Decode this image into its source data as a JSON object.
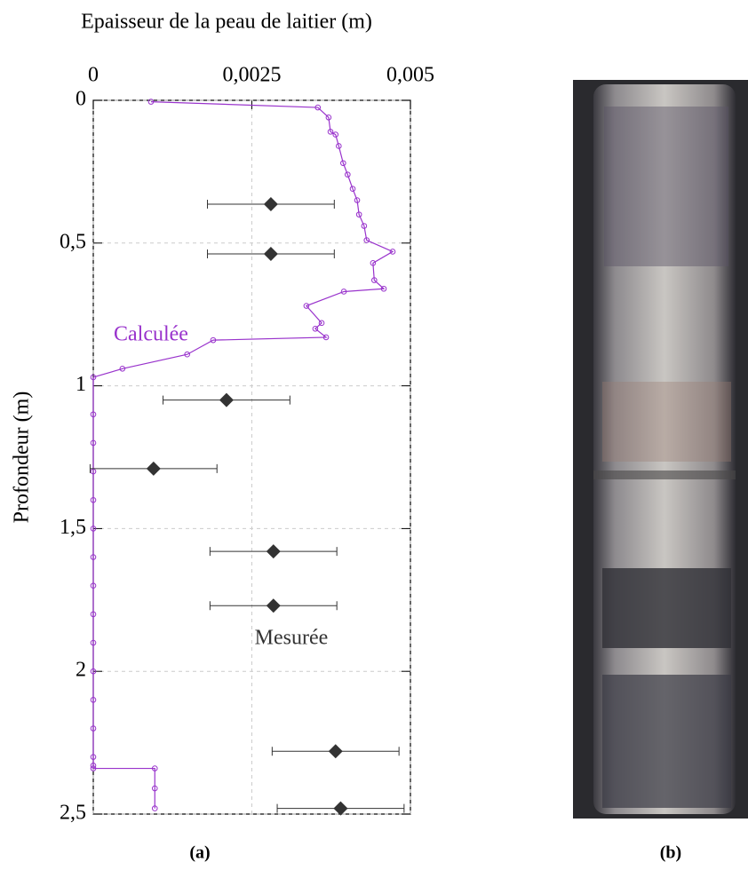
{
  "chart_data": {
    "type": "scatter",
    "title": "Epaisseur de la peau de laitier (m)",
    "ylabel": "Profondeur (m)",
    "xlim": [
      0,
      0.005
    ],
    "ylim": [
      0,
      2.5
    ],
    "y_inverted": true,
    "x_axis_position": "top",
    "grid": true,
    "xticks": [
      0,
      {
        "value": 0.0025,
        "label": "0,0025"
      },
      {
        "value": 0.005,
        "label": "0,005"
      }
    ],
    "yticks": [
      0,
      {
        "value": 0.5,
        "label": "0,5"
      },
      1,
      {
        "value": 1.5,
        "label": "1,5"
      },
      2,
      {
        "value": 2.5,
        "label": "2,5"
      }
    ],
    "series": [
      {
        "name": "Calculée",
        "color": "#9933cc",
        "kind": "line",
        "x": [
          0.00091,
          0.00354,
          0.00371,
          0.00374,
          0.00382,
          0.00387,
          0.00394,
          0.00401,
          0.00409,
          0.00416,
          0.00419,
          0.00427,
          0.00431,
          0.00472,
          0.00441,
          0.00443,
          0.00458,
          0.00395,
          0.00336,
          0.0036,
          0.0035,
          0.00367,
          0.00189,
          0.00148,
          0.00046,
          0,
          0,
          0,
          0,
          0,
          0,
          0,
          0,
          0,
          0,
          0,
          0,
          0,
          0,
          0,
          0,
          0.00097,
          0.00097,
          0.00097
        ],
        "values": [
          0.005,
          0.025,
          0.06,
          0.11,
          0.12,
          0.16,
          0.22,
          0.26,
          0.31,
          0.35,
          0.4,
          0.44,
          0.49,
          0.53,
          0.57,
          0.63,
          0.66,
          0.67,
          0.72,
          0.78,
          0.8,
          0.83,
          0.84,
          0.89,
          0.94,
          0.97,
          1.1,
          1.2,
          1.3,
          1.4,
          1.5,
          1.6,
          1.7,
          1.8,
          1.9,
          2.0,
          2.1,
          2.2,
          2.3,
          2.33,
          2.34,
          2.34,
          2.41,
          2.48
        ]
      },
      {
        "name": "Mesurée",
        "color": "#333333",
        "kind": "errorbar",
        "x": [
          0.0028,
          0.0028,
          0.0021,
          0.00095,
          0.00284,
          0.00284,
          0.00382,
          0.0039
        ],
        "values": [
          0.364,
          0.538,
          1.05,
          1.29,
          1.58,
          1.77,
          2.28,
          2.48
        ],
        "xerr": [
          0.001,
          0.001,
          0.001,
          0.001,
          0.001,
          0.001,
          0.001,
          0.001
        ]
      }
    ],
    "panel_labels": [
      "(a)",
      "(b)"
    ]
  }
}
